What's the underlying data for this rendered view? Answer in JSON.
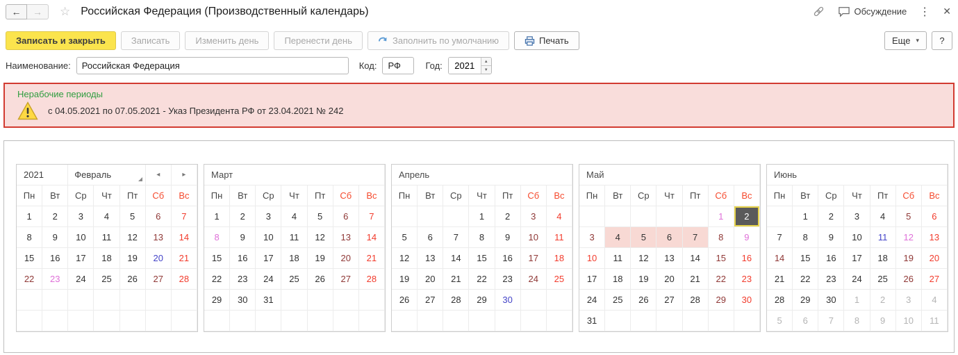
{
  "header": {
    "title": "Российская Федерация (Производственный календарь)",
    "discussion": "Обсуждение"
  },
  "toolbar": {
    "save_close": "Записать и закрыть",
    "save": "Записать",
    "change_day": "Изменить день",
    "move_day": "Перенести день",
    "fill_default": "Заполнить по умолчанию",
    "print": "Печать",
    "more": "Еще",
    "help": "?"
  },
  "form": {
    "name_label": "Наименование:",
    "name_value": "Российская Федерация",
    "code_label": "Код:",
    "code_value": "РФ",
    "year_label": "Год:",
    "year_value": "2021"
  },
  "warning": {
    "title": "Нерабочие периоды",
    "text": "с 04.05.2021 по 07.05.2021 - Указ Президента РФ от 23.04.2021 № 242"
  },
  "icons": {
    "back": "←",
    "forward": "→",
    "star": "☆",
    "menu_dots": "⋮",
    "close": "✕",
    "caret_down": "▾",
    "prev": "◂",
    "next": "▸",
    "spin_up": "▲",
    "spin_down": "▼"
  },
  "colors": {
    "sat": "#8f3836",
    "sun": "#f23b2c",
    "hol": "#df70d8",
    "pre": "#4444c8",
    "adj": "#b4b4b4",
    "wkhd": "#f54a2d",
    "nwbg": "#f8d9d4",
    "selbg": "#5a5a5a",
    "selbd": "#e7d44b",
    "warnbd": "#d23b31",
    "warnbg": "#f9dddb",
    "green": "#2f9d3f",
    "ylbg": "#fbe44d",
    "ylbd": "#dfc94a"
  },
  "calendar": {
    "year": "2021",
    "weekdays": [
      "Пн",
      "Вт",
      "Ср",
      "Чт",
      "Пт",
      "Сб",
      "Вс"
    ],
    "months": [
      {
        "name": "Февраль",
        "first": true,
        "weeks": [
          [
            [
              "1",
              ""
            ],
            [
              "2",
              ""
            ],
            [
              "3",
              ""
            ],
            [
              "4",
              ""
            ],
            [
              "5",
              ""
            ],
            [
              "6",
              "sat"
            ],
            [
              "7",
              "sun"
            ]
          ],
          [
            [
              "8",
              ""
            ],
            [
              "9",
              ""
            ],
            [
              "10",
              ""
            ],
            [
              "11",
              ""
            ],
            [
              "12",
              ""
            ],
            [
              "13",
              "sat"
            ],
            [
              "14",
              "sun"
            ]
          ],
          [
            [
              "15",
              ""
            ],
            [
              "16",
              ""
            ],
            [
              "17",
              ""
            ],
            [
              "18",
              ""
            ],
            [
              "19",
              ""
            ],
            [
              "20",
              "pre"
            ],
            [
              "21",
              "sun"
            ]
          ],
          [
            [
              "22",
              "sat"
            ],
            [
              "23",
              "hol"
            ],
            [
              "24",
              ""
            ],
            [
              "25",
              ""
            ],
            [
              "26",
              ""
            ],
            [
              "27",
              "sat"
            ],
            [
              "28",
              "sun"
            ]
          ],
          [
            [
              "",
              ""
            ],
            [
              "",
              ""
            ],
            [
              "",
              ""
            ],
            [
              "",
              ""
            ],
            [
              "",
              ""
            ],
            [
              "",
              ""
            ],
            [
              "",
              ""
            ]
          ],
          [
            [
              "",
              ""
            ],
            [
              "",
              ""
            ],
            [
              "",
              ""
            ],
            [
              "",
              ""
            ],
            [
              "",
              ""
            ],
            [
              "",
              ""
            ],
            [
              "",
              ""
            ]
          ]
        ]
      },
      {
        "name": "Март",
        "weeks": [
          [
            [
              "1",
              ""
            ],
            [
              "2",
              ""
            ],
            [
              "3",
              ""
            ],
            [
              "4",
              ""
            ],
            [
              "5",
              ""
            ],
            [
              "6",
              "sat"
            ],
            [
              "7",
              "sun"
            ]
          ],
          [
            [
              "8",
              "hol"
            ],
            [
              "9",
              ""
            ],
            [
              "10",
              ""
            ],
            [
              "11",
              ""
            ],
            [
              "12",
              ""
            ],
            [
              "13",
              "sat"
            ],
            [
              "14",
              "sun"
            ]
          ],
          [
            [
              "15",
              ""
            ],
            [
              "16",
              ""
            ],
            [
              "17",
              ""
            ],
            [
              "18",
              ""
            ],
            [
              "19",
              ""
            ],
            [
              "20",
              "sat"
            ],
            [
              "21",
              "sun"
            ]
          ],
          [
            [
              "22",
              ""
            ],
            [
              "23",
              ""
            ],
            [
              "24",
              ""
            ],
            [
              "25",
              ""
            ],
            [
              "26",
              ""
            ],
            [
              "27",
              "sat"
            ],
            [
              "28",
              "sun"
            ]
          ],
          [
            [
              "29",
              ""
            ],
            [
              "30",
              ""
            ],
            [
              "31",
              ""
            ],
            [
              "",
              ""
            ],
            [
              "",
              ""
            ],
            [
              "",
              ""
            ],
            [
              "",
              ""
            ]
          ],
          [
            [
              "",
              ""
            ],
            [
              "",
              ""
            ],
            [
              "",
              ""
            ],
            [
              "",
              ""
            ],
            [
              "",
              ""
            ],
            [
              "",
              ""
            ],
            [
              "",
              ""
            ]
          ]
        ]
      },
      {
        "name": "Апрель",
        "weeks": [
          [
            [
              "",
              ""
            ],
            [
              "",
              ""
            ],
            [
              "",
              ""
            ],
            [
              "1",
              ""
            ],
            [
              "2",
              ""
            ],
            [
              "3",
              "sat"
            ],
            [
              "4",
              "sun"
            ]
          ],
          [
            [
              "5",
              ""
            ],
            [
              "6",
              ""
            ],
            [
              "7",
              ""
            ],
            [
              "8",
              ""
            ],
            [
              "9",
              ""
            ],
            [
              "10",
              "sat"
            ],
            [
              "11",
              "sun"
            ]
          ],
          [
            [
              "12",
              ""
            ],
            [
              "13",
              ""
            ],
            [
              "14",
              ""
            ],
            [
              "15",
              ""
            ],
            [
              "16",
              ""
            ],
            [
              "17",
              "sat"
            ],
            [
              "18",
              "sun"
            ]
          ],
          [
            [
              "19",
              ""
            ],
            [
              "20",
              ""
            ],
            [
              "21",
              ""
            ],
            [
              "22",
              ""
            ],
            [
              "23",
              ""
            ],
            [
              "24",
              "sat"
            ],
            [
              "25",
              "sun"
            ]
          ],
          [
            [
              "26",
              ""
            ],
            [
              "27",
              ""
            ],
            [
              "28",
              ""
            ],
            [
              "29",
              ""
            ],
            [
              "30",
              "pre"
            ],
            [
              "",
              ""
            ],
            [
              "",
              ""
            ]
          ],
          [
            [
              "",
              ""
            ],
            [
              "",
              ""
            ],
            [
              "",
              ""
            ],
            [
              "",
              ""
            ],
            [
              "",
              ""
            ],
            [
              "",
              ""
            ],
            [
              "",
              ""
            ]
          ]
        ]
      },
      {
        "name": "Май",
        "weeks": [
          [
            [
              "",
              ""
            ],
            [
              "",
              ""
            ],
            [
              "",
              ""
            ],
            [
              "",
              ""
            ],
            [
              "",
              ""
            ],
            [
              "1",
              "hol"
            ],
            [
              "2",
              "sel"
            ]
          ],
          [
            [
              "3",
              "sat"
            ],
            [
              "4",
              "nw"
            ],
            [
              "5",
              "nw"
            ],
            [
              "6",
              "nw"
            ],
            [
              "7",
              "nw"
            ],
            [
              "8",
              "sat"
            ],
            [
              "9",
              "hol"
            ]
          ],
          [
            [
              "10",
              "sun"
            ],
            [
              "11",
              ""
            ],
            [
              "12",
              ""
            ],
            [
              "13",
              ""
            ],
            [
              "14",
              ""
            ],
            [
              "15",
              "sat"
            ],
            [
              "16",
              "sun"
            ]
          ],
          [
            [
              "17",
              ""
            ],
            [
              "18",
              ""
            ],
            [
              "19",
              ""
            ],
            [
              "20",
              ""
            ],
            [
              "21",
              ""
            ],
            [
              "22",
              "sat"
            ],
            [
              "23",
              "sun"
            ]
          ],
          [
            [
              "24",
              ""
            ],
            [
              "25",
              ""
            ],
            [
              "26",
              ""
            ],
            [
              "27",
              ""
            ],
            [
              "28",
              ""
            ],
            [
              "29",
              "sat"
            ],
            [
              "30",
              "sun"
            ]
          ],
          [
            [
              "31",
              ""
            ],
            [
              "",
              ""
            ],
            [
              "",
              ""
            ],
            [
              "",
              ""
            ],
            [
              "",
              ""
            ],
            [
              "",
              ""
            ],
            [
              "",
              ""
            ]
          ]
        ]
      },
      {
        "name": "Июнь",
        "weeks": [
          [
            [
              "",
              ""
            ],
            [
              "1",
              ""
            ],
            [
              "2",
              ""
            ],
            [
              "3",
              ""
            ],
            [
              "4",
              ""
            ],
            [
              "5",
              "sat"
            ],
            [
              "6",
              "sun"
            ]
          ],
          [
            [
              "7",
              ""
            ],
            [
              "8",
              ""
            ],
            [
              "9",
              ""
            ],
            [
              "10",
              ""
            ],
            [
              "11",
              "pre"
            ],
            [
              "12",
              "hol"
            ],
            [
              "13",
              "sun"
            ]
          ],
          [
            [
              "14",
              "sat"
            ],
            [
              "15",
              ""
            ],
            [
              "16",
              ""
            ],
            [
              "17",
              ""
            ],
            [
              "18",
              ""
            ],
            [
              "19",
              "sat"
            ],
            [
              "20",
              "sun"
            ]
          ],
          [
            [
              "21",
              ""
            ],
            [
              "22",
              ""
            ],
            [
              "23",
              ""
            ],
            [
              "24",
              ""
            ],
            [
              "25",
              ""
            ],
            [
              "26",
              "sat"
            ],
            [
              "27",
              "sun"
            ]
          ],
          [
            [
              "28",
              ""
            ],
            [
              "29",
              ""
            ],
            [
              "30",
              ""
            ],
            [
              "1",
              "adj"
            ],
            [
              "2",
              "adj"
            ],
            [
              "3",
              "adj"
            ],
            [
              "4",
              "adj"
            ]
          ],
          [
            [
              "5",
              "adj"
            ],
            [
              "6",
              "adj"
            ],
            [
              "7",
              "adj"
            ],
            [
              "8",
              "adj"
            ],
            [
              "9",
              "adj"
            ],
            [
              "10",
              "adj"
            ],
            [
              "11",
              "adj"
            ]
          ]
        ]
      }
    ]
  }
}
